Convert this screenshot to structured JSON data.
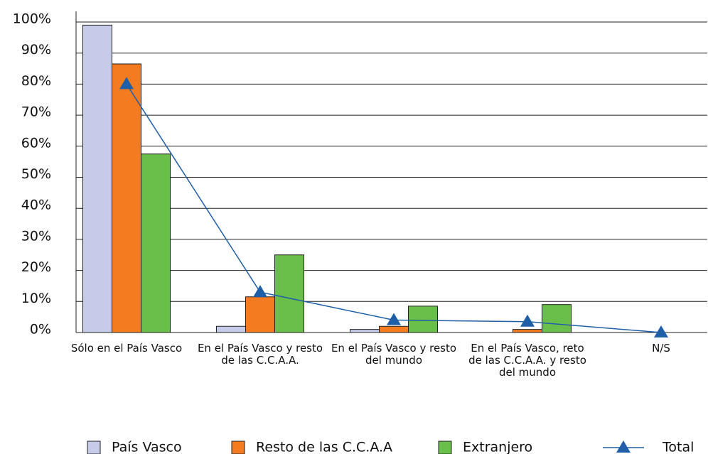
{
  "chart_data": {
    "type": "bar",
    "categories": [
      "Sólo en el País Vasco",
      "En el País Vasco y resto de las C.C.A.A.",
      "En el País Vasco y resto del mundo",
      "En el País Vasco, reto de las C.C.A.A. y resto del mundo",
      "N/S"
    ],
    "series": [
      {
        "name": "País Vasco",
        "color": "#c5cbe9",
        "values": [
          99,
          2,
          1,
          0,
          0
        ]
      },
      {
        "name": "Resto de las C.C.A.A",
        "color": "#f47b20",
        "values": [
          86.5,
          11.5,
          2,
          1,
          0
        ]
      },
      {
        "name": "Extranjero",
        "color": "#6abf4b",
        "values": [
          57.5,
          25,
          8.5,
          9,
          0
        ]
      },
      {
        "name": "Total",
        "color": "#1f5fa8",
        "type": "line",
        "values": [
          80,
          13,
          4,
          3.5,
          0
        ]
      }
    ],
    "ylim": [
      0,
      100
    ],
    "yticks": [
      {
        "value": 0,
        "label": "0%"
      },
      {
        "value": 10,
        "label": "10%"
      },
      {
        "value": 20,
        "label": "20%"
      },
      {
        "value": 30,
        "label": "30%"
      },
      {
        "value": 40,
        "label": "40%"
      },
      {
        "value": 50,
        "label": "50%"
      },
      {
        "value": 60,
        "label": "60%"
      },
      {
        "value": 70,
        "label": "70%"
      },
      {
        "value": 80,
        "label": "80%"
      },
      {
        "value": 90,
        "label": "90%"
      },
      {
        "value": 100,
        "label": "100%"
      }
    ],
    "grid": true,
    "legend": "bottom"
  }
}
